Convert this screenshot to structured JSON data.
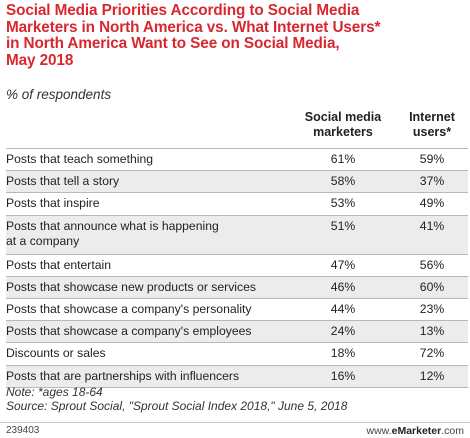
{
  "header": {
    "title_lines": [
      "Social Media Priorities According to Social Media",
      "Marketers in North America vs. What Internet Users*",
      "in North America Want to See on Social Media,",
      "May 2018"
    ],
    "subtitle": "% of respondents"
  },
  "chart_data": {
    "type": "table",
    "title": "Social Media Priorities According to Social Media Marketers in North America vs. What Internet Users* in North America Want to See on Social Media, May 2018",
    "subtitle": "% of respondents",
    "columns": [
      {
        "name": "Social media marketers",
        "lines": [
          "Social media",
          "marketers"
        ]
      },
      {
        "name": "Internet users*",
        "lines": [
          "Internet",
          "users*"
        ]
      }
    ],
    "rows": [
      {
        "label_lines": [
          "Posts that teach something"
        ],
        "values": [
          "61%",
          "59%"
        ]
      },
      {
        "label_lines": [
          "Posts that tell a story"
        ],
        "values": [
          "58%",
          "37%"
        ]
      },
      {
        "label_lines": [
          "Posts that inspire"
        ],
        "values": [
          "53%",
          "49%"
        ]
      },
      {
        "label_lines": [
          "Posts that announce what is happening",
          "at a company"
        ],
        "values": [
          "51%",
          "41%"
        ]
      },
      {
        "label_lines": [
          "Posts that entertain"
        ],
        "values": [
          "47%",
          "56%"
        ]
      },
      {
        "label_lines": [
          "Posts that showcase new products or services"
        ],
        "values": [
          "46%",
          "60%"
        ]
      },
      {
        "label_lines": [
          "Posts that showcase a company's personality"
        ],
        "values": [
          "44%",
          "23%"
        ]
      },
      {
        "label_lines": [
          "Posts that showcase a company's employees"
        ],
        "values": [
          "24%",
          "13%"
        ]
      },
      {
        "label_lines": [
          "Discounts or sales"
        ],
        "values": [
          "18%",
          "72%"
        ]
      },
      {
        "label_lines": [
          "Posts that are partnerships with influencers"
        ],
        "values": [
          "16%",
          "12%"
        ]
      }
    ]
  },
  "notes": {
    "note": "Note: *ages 18-64",
    "source": "Source: Sprout Social, \"Sprout Social Index 2018,\" June 5, 2018"
  },
  "footer": {
    "id": "239403",
    "brand_prefix": "www.",
    "brand_bold": "eMarketer",
    "brand_suffix": ".com"
  },
  "colors": {
    "title": "#d7282f",
    "stripe": "#ececec",
    "rule": "#b8b8b8"
  }
}
